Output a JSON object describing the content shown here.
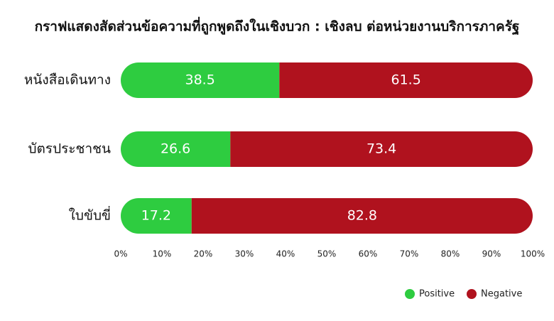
{
  "chart_data": {
    "type": "stacked_bar_horizontal",
    "title": "กราฟแสดงสัดส่วนข้อความที่ถูกพูดถึงในเชิงบวก : เชิงลบ ต่อหน่วยงานบริการภาครัฐ",
    "categories": [
      "หนังสือเดินทาง",
      "บัตรประชาชน",
      "ใบขับขี่"
    ],
    "series": [
      {
        "name": "Positive",
        "color": "#2ecc40",
        "values": [
          38.5,
          26.6,
          17.2
        ]
      },
      {
        "name": "Negative",
        "color": "#b0121e",
        "values": [
          61.5,
          73.4,
          82.8
        ]
      }
    ],
    "xlim": [
      0,
      100
    ],
    "xticks": [
      {
        "value": 0,
        "label": "0%"
      },
      {
        "value": 10,
        "label": "10%"
      },
      {
        "value": 20,
        "label": "20%"
      },
      {
        "value": 30,
        "label": "30%"
      },
      {
        "value": 40,
        "label": "40%"
      },
      {
        "value": 50,
        "label": "50%"
      },
      {
        "value": 60,
        "label": "60%"
      },
      {
        "value": 70,
        "label": "70%"
      },
      {
        "value": 80,
        "label": "80%"
      },
      {
        "value": 90,
        "label": "90%"
      },
      {
        "value": 100,
        "label": "100%"
      }
    ],
    "legend": "bottom-right"
  }
}
